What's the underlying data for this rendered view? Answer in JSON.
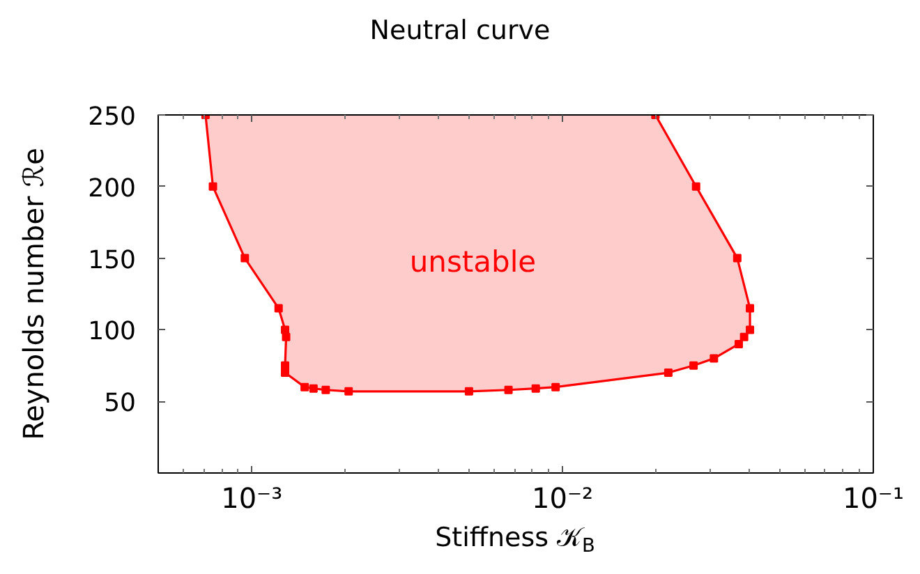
{
  "chart_data": {
    "type": "area",
    "title": "Neutral curve",
    "xlabel": "Stiffness 𝒦$_{B}$",
    "ylabel": "Reynolds number ℛe",
    "x": [
      0.00071,
      0.00075,
      0.00095,
      0.00122,
      0.00128,
      0.00129,
      0.00128,
      0.00128,
      0.00148,
      0.00158,
      0.00173,
      0.00205,
      0.005,
      0.0067,
      0.0082,
      0.0095,
      0.0219,
      0.0264,
      0.0307,
      0.0369,
      0.0384,
      0.0401,
      0.0401,
      0.0365,
      0.0269,
      0.0199
    ],
    "series": [
      {
        "color": "#ff0000",
        "values": [
          250,
          200,
          150,
          115,
          100,
          95,
          75,
          70,
          60,
          59,
          58,
          57,
          57,
          58,
          59,
          60,
          70,
          75,
          80,
          90,
          95,
          100,
          115,
          150,
          200,
          250
        ]
      }
    ],
    "xlim": [
      0.0005,
      0.1
    ],
    "ylim": [
      0,
      250
    ],
    "xticks": [
      {
        "value": 0.001,
        "label": "10⁻³"
      },
      {
        "value": 0.01,
        "label": "10⁻²"
      },
      {
        "value": 0.1,
        "label": "10⁻¹"
      }
    ],
    "yticks": [
      50,
      100,
      150,
      200,
      250
    ],
    "log": "x",
    "grid": false,
    "marker": "square",
    "line_style": "solid",
    "annotations": [
      "unstable"
    ]
  }
}
